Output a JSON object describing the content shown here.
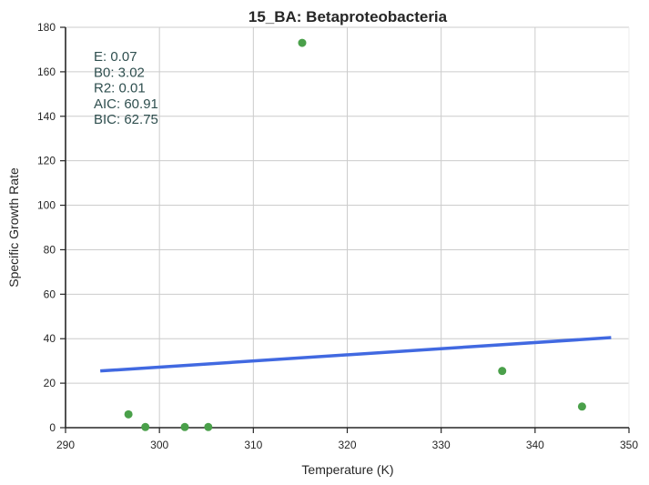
{
  "chart_data": {
    "type": "scatter",
    "title": "15_BA: Betaproteobacteria",
    "xlabel": "Temperature (K)",
    "ylabel": "Specific Growth Rate",
    "xlim": [
      290,
      350
    ],
    "ylim": [
      0,
      180
    ],
    "x_ticks": [
      290,
      300,
      310,
      320,
      330,
      340,
      350
    ],
    "y_ticks": [
      0,
      20,
      40,
      60,
      80,
      100,
      120,
      140,
      160,
      180
    ],
    "grid": true,
    "series": [
      {
        "kind": "points",
        "color": "#4aa04a",
        "points": [
          {
            "x": 296.7,
            "y": 6.0
          },
          {
            "x": 298.5,
            "y": 0.3
          },
          {
            "x": 302.7,
            "y": 0.3
          },
          {
            "x": 305.2,
            "y": 0.3
          },
          {
            "x": 315.2,
            "y": 173.0
          },
          {
            "x": 336.5,
            "y": 25.5
          },
          {
            "x": 345.0,
            "y": 9.5
          }
        ]
      },
      {
        "kind": "line",
        "color": "#4169e1",
        "points": [
          {
            "x": 293.7,
            "y": 25.5
          },
          {
            "x": 348.1,
            "y": 40.5
          }
        ]
      }
    ],
    "annotation": {
      "lines": [
        "E:  0.07",
        "B0:  3.02",
        "R2:  0.01",
        "AIC: 60.91",
        "BIC: 62.75"
      ],
      "color": "#2f4f4f"
    }
  }
}
